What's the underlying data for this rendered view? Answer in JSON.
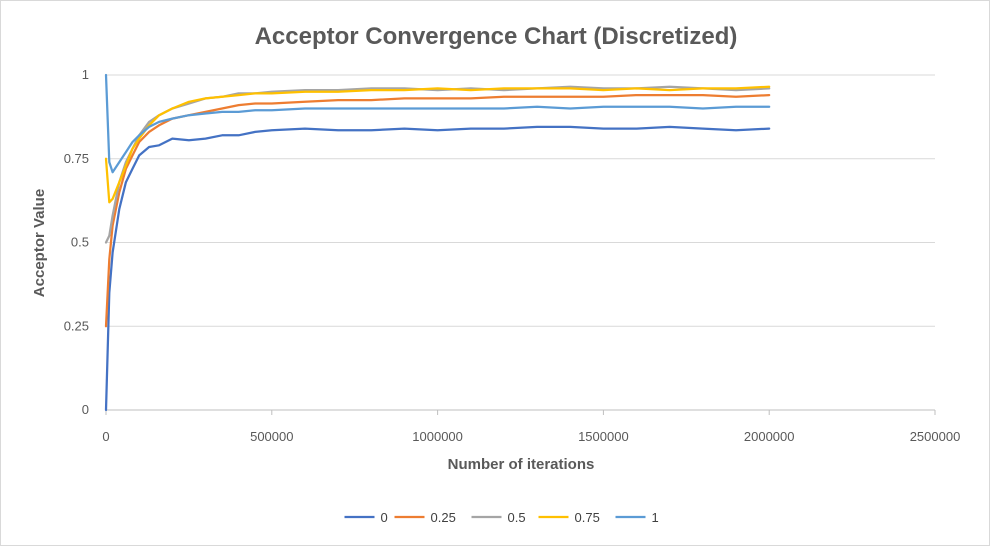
{
  "chart_data": {
    "type": "line",
    "title": "Acceptor Convergence Chart (Discretized)",
    "xlabel": "Number of iterations",
    "ylabel": "Acceptor Value",
    "xlim": [
      0,
      2500000
    ],
    "ylim": [
      0,
      1
    ],
    "x_ticks": [
      "0",
      "500000",
      "1000000",
      "1500000",
      "2000000",
      "2500000"
    ],
    "y_ticks": [
      "0",
      "0.25",
      "0.5",
      "0.75",
      "1"
    ],
    "grid": "horizontal",
    "legend": "bottom",
    "series": [
      {
        "name": "0",
        "color": "#4472c4",
        "x": [
          0,
          10000,
          20000,
          40000,
          60000,
          80000,
          100000,
          130000,
          160000,
          200000,
          250000,
          300000,
          350000,
          400000,
          450000,
          500000,
          600000,
          700000,
          800000,
          900000,
          1000000,
          1100000,
          1200000,
          1300000,
          1400000,
          1500000,
          1600000,
          1700000,
          1800000,
          1900000,
          2000000
        ],
        "values": [
          0,
          0.35,
          0.47,
          0.6,
          0.68,
          0.72,
          0.76,
          0.785,
          0.79,
          0.81,
          0.805,
          0.81,
          0.82,
          0.82,
          0.83,
          0.835,
          0.84,
          0.835,
          0.835,
          0.84,
          0.835,
          0.84,
          0.84,
          0.845,
          0.845,
          0.84,
          0.84,
          0.845,
          0.84,
          0.835,
          0.84
        ]
      },
      {
        "name": "0.25",
        "color": "#ed7d31",
        "x": [
          0,
          10000,
          20000,
          40000,
          60000,
          80000,
          100000,
          130000,
          160000,
          200000,
          250000,
          300000,
          350000,
          400000,
          450000,
          500000,
          600000,
          700000,
          800000,
          900000,
          1000000,
          1100000,
          1200000,
          1300000,
          1400000,
          1500000,
          1600000,
          1700000,
          1800000,
          1900000,
          2000000
        ],
        "values": [
          0.25,
          0.45,
          0.55,
          0.65,
          0.72,
          0.76,
          0.8,
          0.83,
          0.85,
          0.87,
          0.88,
          0.89,
          0.9,
          0.91,
          0.915,
          0.915,
          0.92,
          0.925,
          0.925,
          0.93,
          0.93,
          0.93,
          0.935,
          0.935,
          0.935,
          0.935,
          0.94,
          0.94,
          0.94,
          0.935,
          0.94
        ]
      },
      {
        "name": "0.5",
        "color": "#a5a5a5",
        "x": [
          0,
          10000,
          20000,
          40000,
          60000,
          80000,
          100000,
          130000,
          160000,
          200000,
          250000,
          300000,
          350000,
          400000,
          450000,
          500000,
          600000,
          700000,
          800000,
          900000,
          1000000,
          1100000,
          1200000,
          1300000,
          1400000,
          1500000,
          1600000,
          1700000,
          1800000,
          1900000,
          2000000
        ],
        "values": [
          0.5,
          0.52,
          0.58,
          0.68,
          0.74,
          0.78,
          0.82,
          0.86,
          0.88,
          0.9,
          0.915,
          0.93,
          0.935,
          0.945,
          0.945,
          0.95,
          0.955,
          0.955,
          0.96,
          0.96,
          0.955,
          0.96,
          0.955,
          0.96,
          0.965,
          0.96,
          0.96,
          0.965,
          0.96,
          0.955,
          0.96
        ]
      },
      {
        "name": "0.75",
        "color": "#ffc000",
        "x": [
          0,
          10000,
          20000,
          40000,
          60000,
          80000,
          100000,
          130000,
          160000,
          200000,
          250000,
          300000,
          350000,
          400000,
          450000,
          500000,
          600000,
          700000,
          800000,
          900000,
          1000000,
          1100000,
          1200000,
          1300000,
          1400000,
          1500000,
          1600000,
          1700000,
          1800000,
          1900000,
          2000000
        ],
        "values": [
          0.75,
          0.62,
          0.63,
          0.68,
          0.73,
          0.78,
          0.81,
          0.85,
          0.88,
          0.9,
          0.92,
          0.93,
          0.935,
          0.94,
          0.945,
          0.945,
          0.95,
          0.95,
          0.955,
          0.955,
          0.96,
          0.955,
          0.96,
          0.96,
          0.96,
          0.955,
          0.96,
          0.955,
          0.96,
          0.96,
          0.965
        ]
      },
      {
        "name": "1",
        "color": "#5b9bd5",
        "x": [
          0,
          10000,
          20000,
          40000,
          60000,
          80000,
          100000,
          130000,
          160000,
          200000,
          250000,
          300000,
          350000,
          400000,
          450000,
          500000,
          600000,
          700000,
          800000,
          900000,
          1000000,
          1100000,
          1200000,
          1300000,
          1400000,
          1500000,
          1600000,
          1700000,
          1800000,
          1900000,
          2000000
        ],
        "values": [
          1,
          0.74,
          0.71,
          0.74,
          0.77,
          0.8,
          0.82,
          0.845,
          0.86,
          0.87,
          0.88,
          0.885,
          0.89,
          0.89,
          0.895,
          0.895,
          0.9,
          0.9,
          0.9,
          0.9,
          0.9,
          0.9,
          0.9,
          0.905,
          0.9,
          0.905,
          0.905,
          0.905,
          0.9,
          0.905,
          0.905
        ]
      }
    ]
  }
}
